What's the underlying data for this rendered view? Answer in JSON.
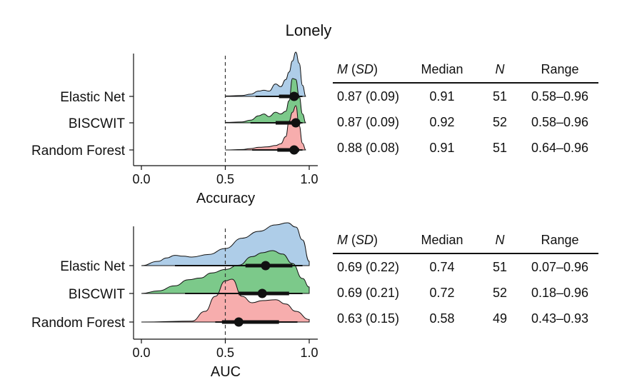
{
  "title": "Lonely",
  "chart_data": [
    {
      "type": "raincloud",
      "xlabel": "Accuracy",
      "xlim": [
        0,
        1
      ],
      "xticks": [
        "0.0",
        "0.5",
        "1.0"
      ],
      "reference_line": 0.5,
      "series": [
        {
          "name": "Elastic Net",
          "color": "#aecde8",
          "density_x": [
            0.5,
            0.6,
            0.65,
            0.7,
            0.73,
            0.76,
            0.8,
            0.83,
            0.86,
            0.88,
            0.9,
            0.92,
            0.94,
            0.96,
            0.98
          ],
          "density_y": [
            0.01,
            0.02,
            0.05,
            0.12,
            0.14,
            0.12,
            0.28,
            0.22,
            0.38,
            0.55,
            0.8,
            1.0,
            0.75,
            0.25,
            0.0
          ],
          "median": 0.91,
          "box": [
            0.82,
            0.94
          ],
          "whisker": [
            0.68,
            0.96
          ]
        },
        {
          "name": "BISCWIT",
          "color": "#7cc98a",
          "density_x": [
            0.5,
            0.6,
            0.65,
            0.7,
            0.73,
            0.76,
            0.8,
            0.83,
            0.86,
            0.88,
            0.9,
            0.92,
            0.94,
            0.96,
            0.98
          ],
          "density_y": [
            0.01,
            0.02,
            0.06,
            0.16,
            0.2,
            0.14,
            0.24,
            0.2,
            0.26,
            0.5,
            1.0,
            0.98,
            0.6,
            0.2,
            0.0
          ],
          "median": 0.92,
          "box": [
            0.8,
            0.94
          ],
          "whisker": [
            0.65,
            0.96
          ]
        },
        {
          "name": "Random Forest",
          "color": "#f7adad",
          "density_x": [
            0.5,
            0.6,
            0.65,
            0.7,
            0.75,
            0.8,
            0.83,
            0.86,
            0.88,
            0.9,
            0.92,
            0.94,
            0.96,
            0.98
          ],
          "density_y": [
            0.0,
            0.01,
            0.03,
            0.06,
            0.07,
            0.1,
            0.14,
            0.3,
            0.65,
            0.85,
            1.0,
            0.55,
            0.15,
            0.0
          ],
          "median": 0.91,
          "box": [
            0.81,
            0.94
          ],
          "whisker": [
            0.66,
            0.96
          ]
        }
      ]
    },
    {
      "type": "raincloud",
      "xlabel": "AUC",
      "xlim": [
        0,
        1
      ],
      "xticks": [
        "0.0",
        "0.5",
        "1.0"
      ],
      "reference_line": 0.5,
      "series": [
        {
          "name": "Elastic Net",
          "color": "#aecde8",
          "density_x": [
            0.0,
            0.1,
            0.15,
            0.2,
            0.25,
            0.3,
            0.4,
            0.5,
            0.6,
            0.7,
            0.8,
            0.87,
            0.92,
            0.96,
            1.0
          ],
          "density_y": [
            0.0,
            0.1,
            0.18,
            0.24,
            0.22,
            0.2,
            0.26,
            0.4,
            0.64,
            0.8,
            0.95,
            1.0,
            0.9,
            0.6,
            0.1
          ],
          "median": 0.74,
          "box": [
            0.62,
            0.9
          ],
          "whisker": [
            0.2,
            0.96
          ]
        },
        {
          "name": "BISCWIT",
          "color": "#7cc98a",
          "density_x": [
            0.0,
            0.1,
            0.2,
            0.28,
            0.35,
            0.42,
            0.5,
            0.58,
            0.66,
            0.72,
            0.78,
            0.84,
            0.9,
            0.96,
            1.0
          ],
          "density_y": [
            0.0,
            0.06,
            0.18,
            0.32,
            0.36,
            0.48,
            0.56,
            0.66,
            0.86,
            0.95,
            1.0,
            0.92,
            0.7,
            0.35,
            0.15
          ],
          "median": 0.72,
          "box": [
            0.58,
            0.88
          ],
          "whisker": [
            0.26,
            0.96
          ]
        },
        {
          "name": "Random Forest",
          "color": "#f7adad",
          "density_x": [
            0.0,
            0.3,
            0.38,
            0.44,
            0.5,
            0.54,
            0.6,
            0.66,
            0.72,
            0.8,
            0.86,
            0.92,
            1.0
          ],
          "density_y": [
            0.0,
            0.02,
            0.25,
            0.6,
            0.96,
            1.0,
            0.6,
            0.45,
            0.5,
            0.52,
            0.42,
            0.25,
            0.06
          ],
          "median": 0.58,
          "box": [
            0.48,
            0.82
          ],
          "whisker": [
            0.44,
            0.93
          ]
        }
      ]
    }
  ],
  "tables": [
    {
      "headers": {
        "mean_sd_m": "M",
        "mean_sd_rest": " (",
        "mean_sd_sd": "SD",
        "mean_sd_close": ")",
        "median": "Median",
        "n": "N",
        "range": "Range"
      },
      "rows": [
        {
          "mean_sd": "0.87 (0.09)",
          "median": "0.91",
          "n": "51",
          "range": "0.58–0.96"
        },
        {
          "mean_sd": "0.87 (0.09)",
          "median": "0.92",
          "n": "52",
          "range": "0.58–0.96"
        },
        {
          "mean_sd": "0.88 (0.08)",
          "median": "0.91",
          "n": "51",
          "range": "0.64–0.96"
        }
      ]
    },
    {
      "headers": {
        "mean_sd_m": "M",
        "mean_sd_rest": " (",
        "mean_sd_sd": "SD",
        "mean_sd_close": ")",
        "median": "Median",
        "n": "N",
        "range": "Range"
      },
      "rows": [
        {
          "mean_sd": "0.69 (0.22)",
          "median": "0.74",
          "n": "51",
          "range": "0.07–0.96"
        },
        {
          "mean_sd": "0.69 (0.21)",
          "median": "0.72",
          "n": "52",
          "range": "0.18–0.96"
        },
        {
          "mean_sd": "0.63 (0.15)",
          "median": "0.58",
          "n": "49",
          "range": "0.43–0.93"
        }
      ]
    }
  ]
}
